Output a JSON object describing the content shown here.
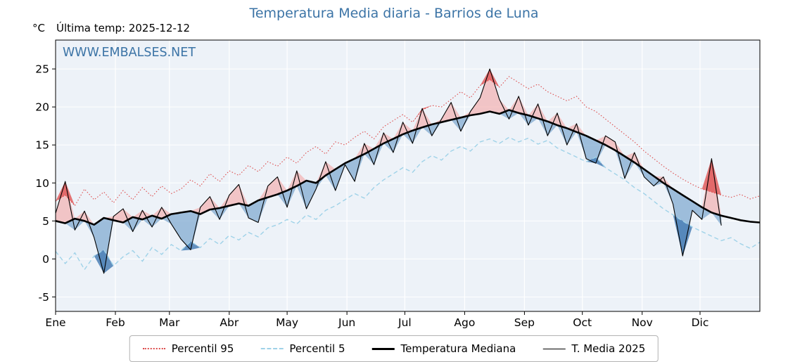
{
  "title": "Temperatura Media diaria - Barrios de Luna",
  "header": {
    "units": "°C",
    "last_temp": "Última temp: 2025-12-12"
  },
  "watermark": "WWW.EMBALSES.NET",
  "colors": {
    "title": "#3c74a6",
    "watermark": "#3c74a6",
    "plot_bg": "#edf2f8",
    "grid": "#ffffff",
    "axis": "#000000",
    "p95": "#dd4b4b",
    "p5": "#9fd2e8",
    "median": "#000000",
    "t2025": "#000000",
    "fill_above_median": "#f3aaaa",
    "fill_below_median": "#7aa6cf",
    "fill_above_p95": "#e05252",
    "fill_below_p5": "#4a7fb5"
  },
  "legend": {
    "items": [
      {
        "label": "Percentil 95",
        "key": "p95"
      },
      {
        "label": "Percentil 5",
        "key": "p5"
      },
      {
        "label": "Temperatura Mediana",
        "key": "median"
      },
      {
        "label": "T. Media 2025",
        "key": "t2025"
      }
    ]
  },
  "chart_data": {
    "type": "line",
    "title": "Temperatura Media diaria - Barrios de Luna",
    "xlabel": "",
    "ylabel": "°C",
    "x_axis": {
      "tick_labels": [
        "Ene",
        "Feb",
        "Mar",
        "Abr",
        "May",
        "Jun",
        "Jul",
        "Ago",
        "Sep",
        "Oct",
        "Nov",
        "Dic"
      ],
      "tick_days": [
        0,
        31,
        59,
        90,
        120,
        151,
        181,
        212,
        243,
        273,
        304,
        334
      ],
      "range_days": [
        0,
        365
      ]
    },
    "y_axis": {
      "ticks": [
        -5,
        0,
        5,
        10,
        15,
        20,
        25
      ],
      "ylim": [
        -6.9,
        28.8
      ]
    },
    "sample_step_days": 5,
    "series": [
      {
        "name": "Percentil 95",
        "style": "dotted",
        "color": "#dd4b4b",
        "values": [
          7.6,
          8.4,
          7.0,
          9.2,
          7.8,
          8.8,
          7.4,
          9.0,
          7.8,
          9.4,
          8.2,
          9.6,
          8.6,
          9.2,
          10.4,
          9.6,
          11.2,
          10.2,
          11.6,
          11.0,
          12.3,
          11.5,
          12.8,
          12.2,
          13.4,
          12.6,
          14.0,
          14.8,
          13.8,
          15.4,
          15.0,
          16.0,
          16.8,
          15.8,
          17.4,
          18.2,
          19.0,
          18.0,
          19.6,
          20.2,
          20.0,
          21.0,
          22.0,
          21.2,
          22.8,
          23.6,
          22.6,
          24.0,
          23.2,
          22.4,
          23.0,
          22.0,
          21.4,
          20.8,
          21.4,
          20.0,
          19.4,
          18.4,
          17.4,
          16.4,
          15.4,
          14.2,
          13.2,
          12.2,
          11.3,
          10.5,
          9.8,
          9.2,
          8.8,
          8.4,
          8.1,
          8.5,
          7.9,
          8.3
        ]
      },
      {
        "name": "Percentil 5",
        "style": "dashed",
        "color": "#9fd2e8",
        "values": [
          1.0,
          -0.6,
          0.8,
          -1.4,
          0.4,
          1.2,
          -0.9,
          0.3,
          1.1,
          -0.3,
          1.5,
          0.6,
          1.9,
          1.1,
          2.3,
          1.5,
          2.7,
          1.9,
          3.1,
          2.5,
          3.5,
          2.9,
          4.1,
          4.5,
          5.2,
          4.6,
          5.8,
          5.2,
          6.4,
          7.0,
          7.8,
          8.6,
          8.0,
          9.4,
          10.4,
          11.2,
          12.0,
          11.4,
          12.8,
          13.6,
          13.0,
          14.2,
          14.8,
          14.2,
          15.4,
          15.8,
          15.2,
          16.0,
          15.4,
          15.9,
          15.1,
          15.6,
          14.6,
          14.0,
          13.4,
          12.8,
          13.4,
          12.0,
          11.2,
          10.4,
          9.4,
          8.6,
          7.6,
          6.6,
          5.8,
          5.0,
          4.2,
          3.6,
          3.0,
          2.4,
          2.8,
          2.0,
          1.4,
          2.2
        ]
      },
      {
        "name": "Temperatura Mediana",
        "style": "solid-thick",
        "color": "#000000",
        "values": [
          5.0,
          4.7,
          5.3,
          5.0,
          4.5,
          5.4,
          5.1,
          4.8,
          5.5,
          5.2,
          5.7,
          5.3,
          5.9,
          6.1,
          6.3,
          5.9,
          6.5,
          6.7,
          7.0,
          7.3,
          7.0,
          7.7,
          8.1,
          8.5,
          9.0,
          9.6,
          10.3,
          10.0,
          11.0,
          11.8,
          12.6,
          13.2,
          13.8,
          14.5,
          15.2,
          15.8,
          16.4,
          16.9,
          17.3,
          17.7,
          18.0,
          18.3,
          18.6,
          18.9,
          19.1,
          19.4,
          19.1,
          19.6,
          19.2,
          18.9,
          18.5,
          18.1,
          17.6,
          17.2,
          16.7,
          16.2,
          15.6,
          15.0,
          14.3,
          13.5,
          12.7,
          11.8,
          10.9,
          10.0,
          9.2,
          8.4,
          7.6,
          6.8,
          6.1,
          5.7,
          5.4,
          5.1,
          4.9,
          4.8
        ]
      },
      {
        "name": "T. Media 2025",
        "style": "solid-thin",
        "color": "#000000",
        "end_day": 345,
        "values": [
          6.0,
          10.2,
          3.8,
          6.3,
          2.8,
          -1.9,
          5.6,
          6.6,
          3.6,
          6.4,
          4.2,
          6.8,
          4.6,
          2.6,
          1.2,
          6.8,
          8.2,
          5.2,
          8.4,
          9.8,
          5.4,
          4.8,
          9.6,
          10.8,
          6.8,
          11.6,
          6.6,
          9.2,
          12.8,
          9.0,
          12.4,
          10.2,
          15.2,
          12.4,
          16.6,
          14.0,
          18.0,
          15.2,
          19.8,
          16.2,
          18.4,
          20.6,
          16.8,
          19.4,
          21.2,
          25.0,
          21.0,
          18.4,
          21.4,
          17.6,
          20.4,
          16.2,
          19.2,
          15.0,
          17.8,
          13.2,
          12.6,
          16.2,
          15.4,
          10.6,
          14.0,
          10.8,
          9.6,
          10.8,
          7.2,
          0.4,
          6.4,
          5.2,
          13.2,
          4.4
        ]
      }
    ],
    "fills": {
      "above_median": "#f3aaaa",
      "below_median": "#7aa6cf",
      "above_p95": "#e05252",
      "below_p5": "#4a7fb5"
    },
    "legend_position": "bottom-center",
    "grid": true
  }
}
